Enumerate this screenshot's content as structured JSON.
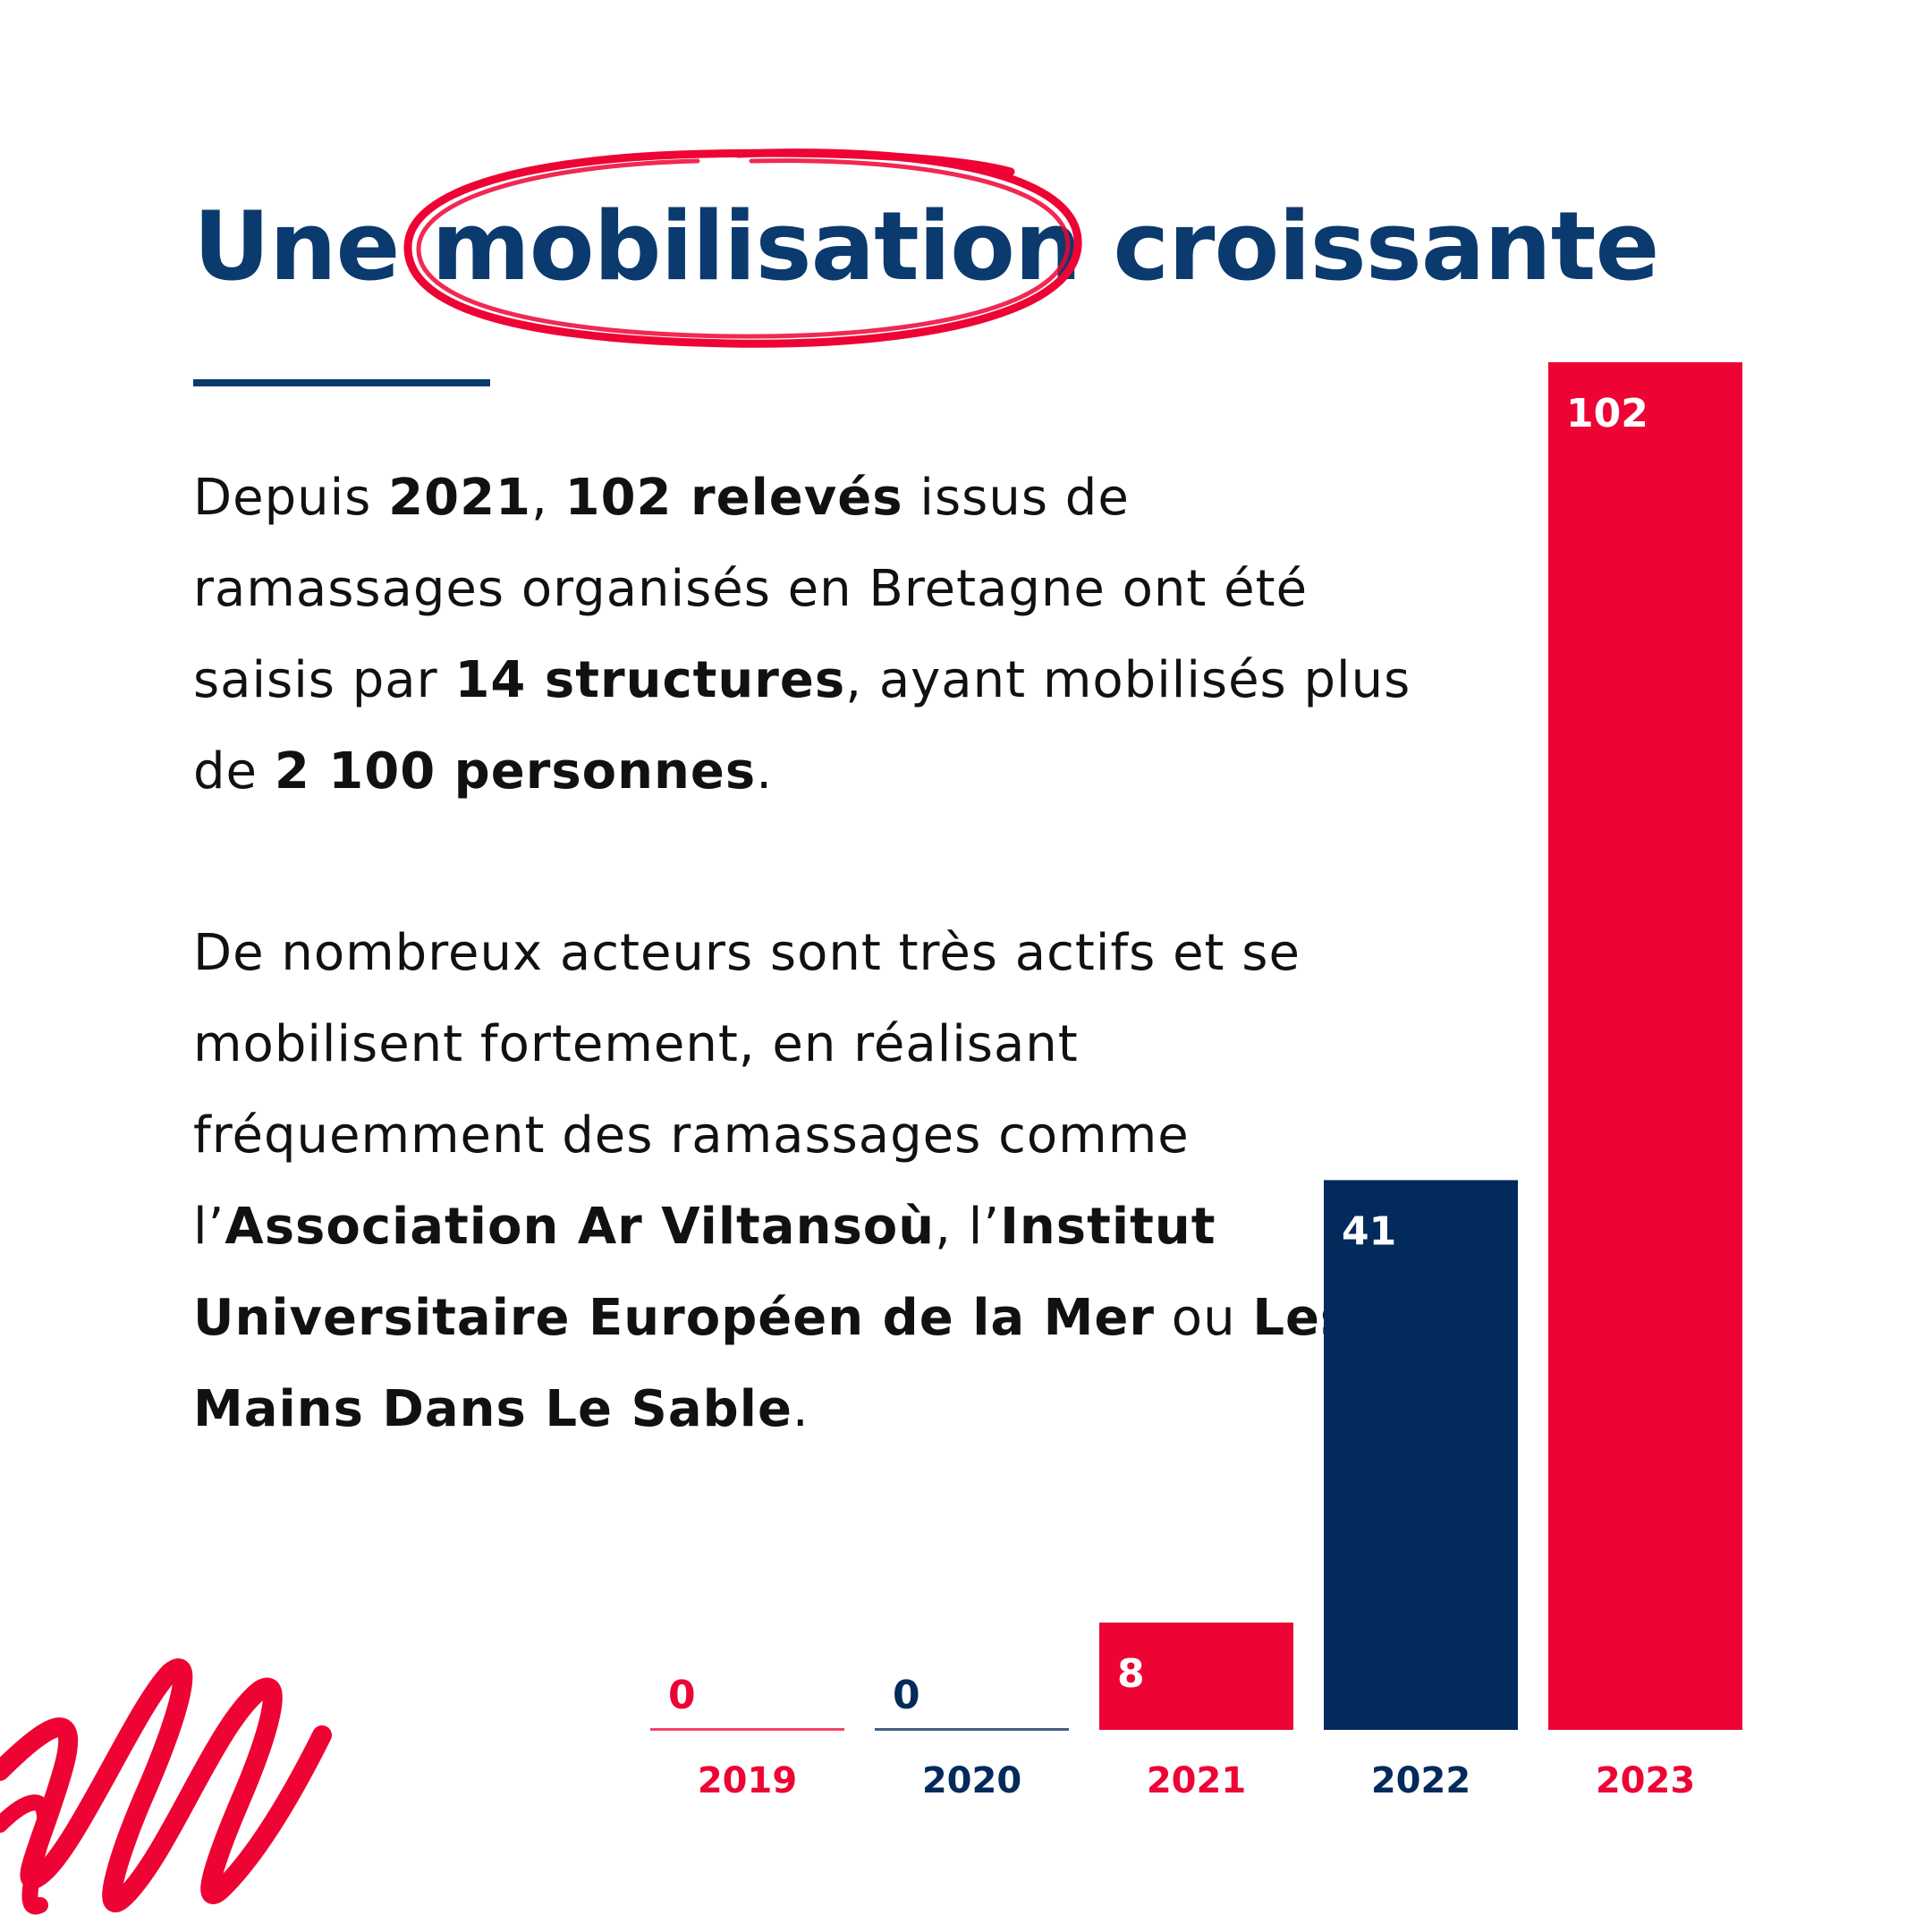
{
  "title": {
    "w1": "Une",
    "w2": "mobilisation",
    "w3": "croissante"
  },
  "paragraph1": {
    "t1": "Depuis ",
    "b1": "2021",
    "t2": ", ",
    "b2": "102 relevés",
    "t3": " issus de ramassages organisés en Bretagne ont été saisis par ",
    "b3": "14 structures",
    "t4": ", ayant mobilisés plus de ",
    "b4": "2 100 personnes",
    "t5": "."
  },
  "paragraph2": {
    "t1": "De nombreux acteurs sont très actifs et se mobilisent fortement, en réalisant fréquemment des ramassages comme l’",
    "b1": "Association Ar Viltansoù",
    "t2": ", l’",
    "b2": "Institut Universitaire Européen de la Mer",
    "t3": " ou ",
    "b3": "Les Mains Dans Le Sable",
    "t4": "."
  },
  "colors": {
    "red": "#ee0434",
    "navy": "#022a5b",
    "title_blue": "#0b3a6e"
  },
  "chart_data": {
    "type": "bar",
    "categories": [
      "2019",
      "2020",
      "2021",
      "2022",
      "2023"
    ],
    "values": [
      0,
      0,
      8,
      41,
      102
    ],
    "bar_colors": [
      "#ee0434",
      "#022a5b",
      "#ee0434",
      "#022a5b",
      "#ee0434"
    ],
    "data_labels": [
      "0",
      "0",
      "8",
      "41",
      "102"
    ],
    "ylim": [
      0,
      102
    ],
    "grid": false,
    "legend": "none"
  }
}
